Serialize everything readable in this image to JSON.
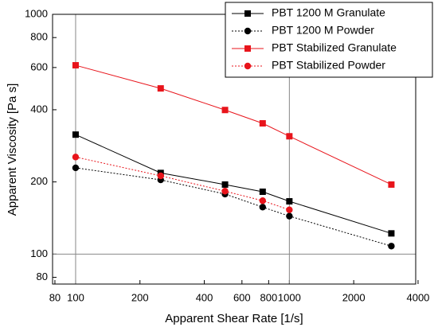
{
  "chart_data": {
    "type": "line",
    "x_label": "Apparent Shear Rate [1/s]",
    "y_label": "Apparent Viscosity [Pa s]",
    "x": [
      100,
      250,
      500,
      750,
      1000,
      3000
    ],
    "series": [
      {
        "name": "PBT 1200 M Granulate",
        "color": "#000000",
        "marker": "square",
        "linestyle": "solid",
        "values": [
          315,
          218,
          195,
          182,
          166,
          122
        ]
      },
      {
        "name": "PBT 1200 M Powder",
        "color": "#000000",
        "marker": "circle",
        "linestyle": "dotted",
        "values": [
          229,
          204,
          178,
          157,
          144,
          108
        ]
      },
      {
        "name": "PBT Stabilized Granulate",
        "color": "#e8141b",
        "marker": "square",
        "linestyle": "solid",
        "values": [
          613,
          491,
          399,
          351,
          310,
          195
        ]
      },
      {
        "name": "PBT Stabilized Powder",
        "color": "#e8141b",
        "marker": "circle",
        "linestyle": "dotted",
        "values": [
          254,
          212,
          183,
          167,
          153,
          null
        ]
      }
    ],
    "xscale": "log",
    "yscale": "log",
    "xlim": [
      78,
      3900
    ],
    "ylim": [
      75,
      1000
    ],
    "xticks": [
      80,
      100,
      200,
      400,
      600,
      800,
      1000,
      2000,
      4000
    ],
    "yticks": [
      80,
      100,
      200,
      400,
      600,
      800,
      1000
    ],
    "grid": "major",
    "legend": "upper right"
  }
}
